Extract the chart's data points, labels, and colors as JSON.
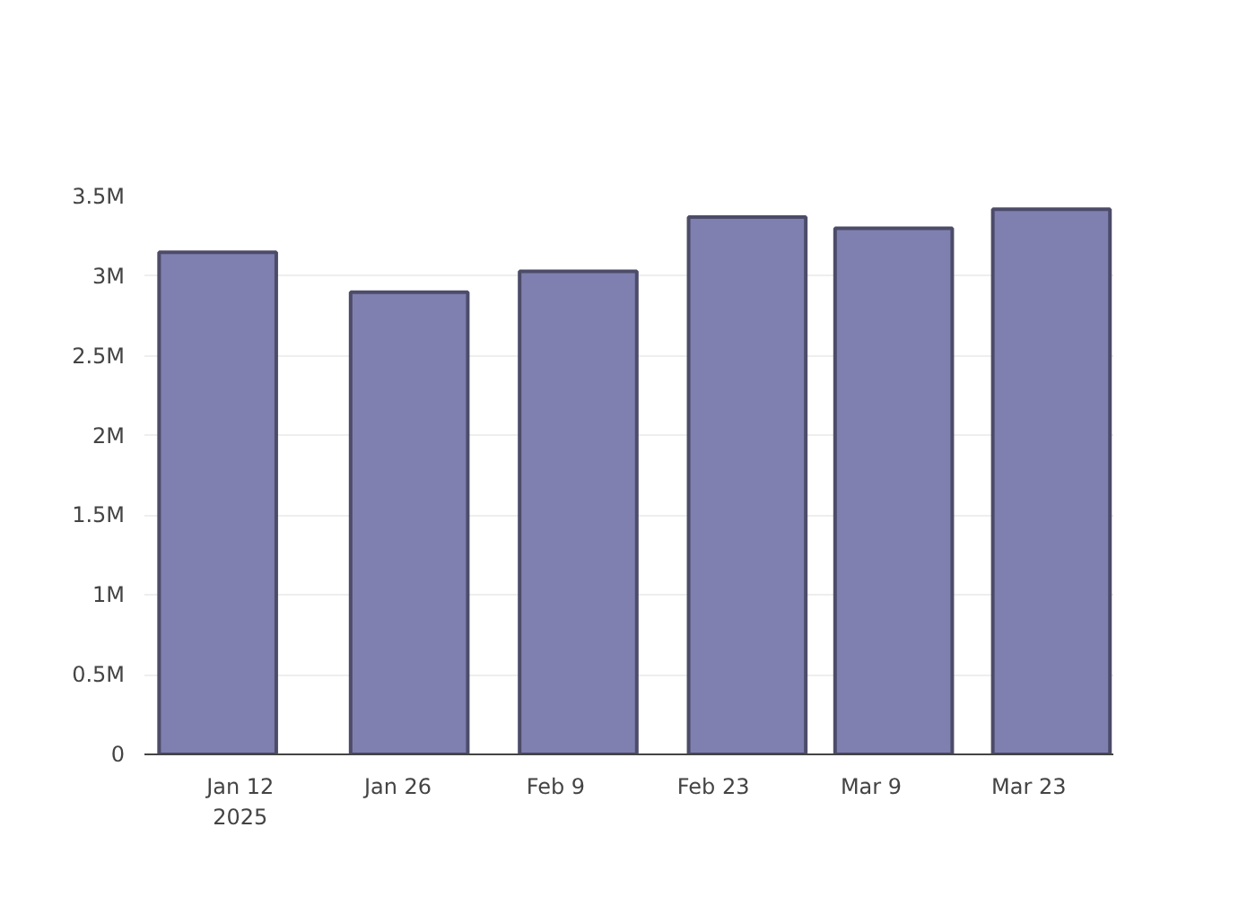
{
  "chart_data": {
    "type": "bar",
    "x": [
      "2025-01-10",
      "2025-01-27",
      "2025-02-11",
      "2025-02-26",
      "2025-03-11",
      "2025-03-25"
    ],
    "values": [
      3150000,
      2900000,
      3030000,
      3370000,
      3300000,
      3420000
    ],
    "color": "#7f7fb0",
    "xlim": [
      "2025-01-03T12:00",
      "2025-03-30T12:00"
    ],
    "xticks": [
      {
        "value": "2025-01-12",
        "label": "Jan 12\n2025"
      },
      {
        "value": "2025-01-26",
        "label": "Jan 26"
      },
      {
        "value": "2025-02-09",
        "label": "Feb 9"
      },
      {
        "value": "2025-02-23",
        "label": "Feb 23"
      },
      {
        "value": "2025-03-09",
        "label": "Mar 9"
      },
      {
        "value": "2025-03-23",
        "label": "Mar 23"
      }
    ],
    "ylim": [
      0,
      3500000
    ],
    "yticks": [
      0,
      {
        "value": 500000,
        "label": "0.5M"
      },
      {
        "value": 1000000,
        "label": "1M"
      },
      {
        "value": 1500000,
        "label": "1.5M"
      },
      {
        "value": 2000000,
        "label": "2M"
      },
      {
        "value": 2500000,
        "label": "2.5M"
      },
      {
        "value": 3000000,
        "label": "3M"
      },
      {
        "value": 3500000,
        "label": "3.5M"
      }
    ],
    "grid": "y"
  }
}
